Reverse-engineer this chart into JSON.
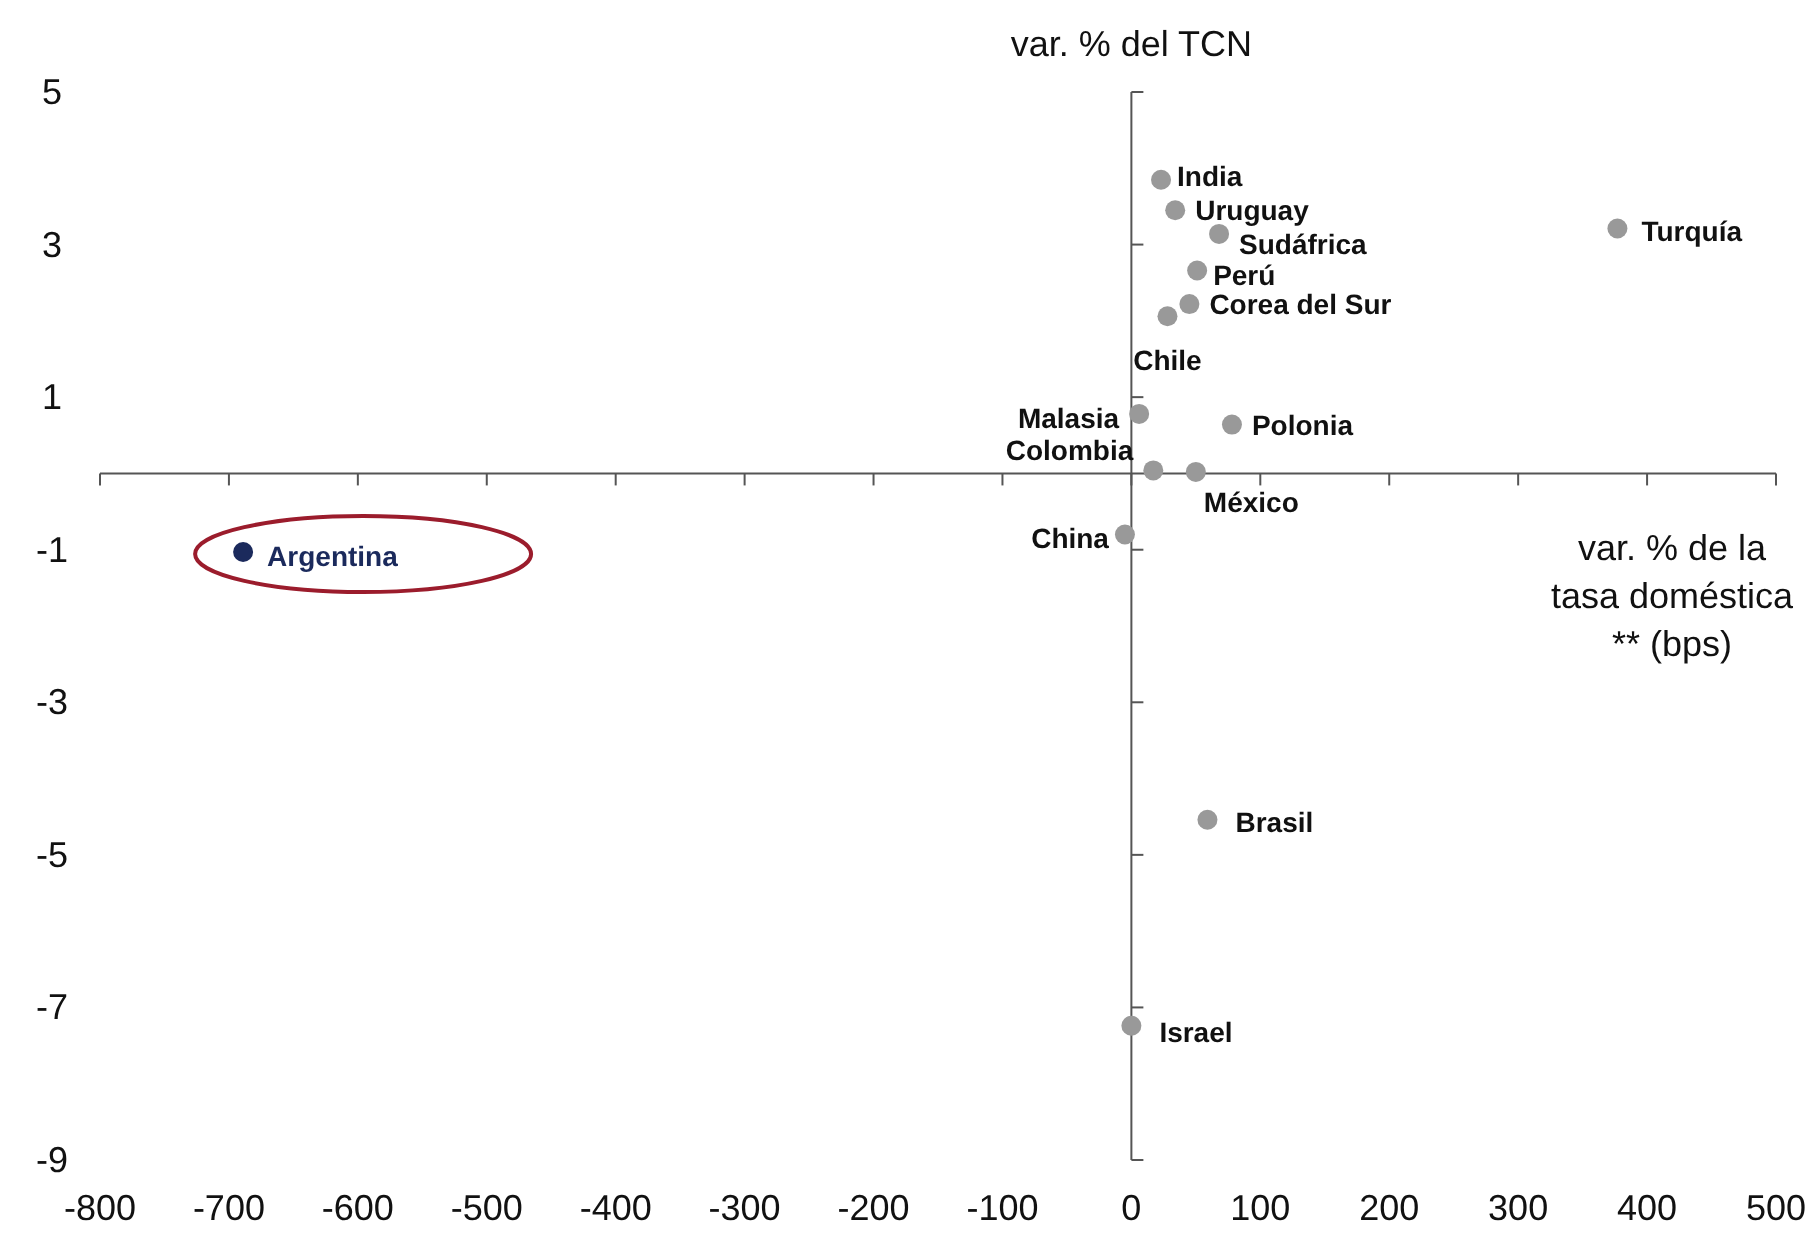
{
  "chart_data": {
    "type": "scatter",
    "xlabel": "var. % de la tasa doméstica ** (bps)",
    "ylabel": "var. % del TCN",
    "x": [
      23,
      34,
      68,
      51,
      45,
      28,
      6,
      78,
      17,
      50,
      -5,
      377,
      -689,
      59,
      0
    ],
    "values": [
      3.85,
      3.45,
      3.14,
      2.66,
      2.22,
      2.06,
      0.78,
      0.64,
      0.04,
      0.02,
      -0.8,
      3.21,
      -1.03,
      -4.54,
      -7.24
    ],
    "colors": [
      "#999999",
      "#999999",
      "#999999",
      "#999999",
      "#999999",
      "#999999",
      "#999999",
      "#999999",
      "#999999",
      "#999999",
      "#999999",
      "#999999",
      "#1b2a5c",
      "#999999",
      "#999999"
    ],
    "annotations": [
      {
        "text": "India",
        "x": 23,
        "y": 3.85
      },
      {
        "text": "Uruguay",
        "x": 34,
        "y": 3.45
      },
      {
        "text": "Sudáfrica",
        "x": 68,
        "y": 3.14
      },
      {
        "text": "Perú",
        "x": 51,
        "y": 2.66
      },
      {
        "text": "Corea del Sur",
        "x": 45,
        "y": 2.22
      },
      {
        "text": "Chile",
        "x": 28,
        "y": 2.06
      },
      {
        "text": "Malasia",
        "x": 6,
        "y": 0.78
      },
      {
        "text": "Polonia",
        "x": 78,
        "y": 0.64
      },
      {
        "text": "Colombia",
        "x": 17,
        "y": 0.04
      },
      {
        "text": "México",
        "x": 50,
        "y": 0.02
      },
      {
        "text": "China",
        "x": -5,
        "y": -0.8
      },
      {
        "text": "Turquía",
        "x": 377,
        "y": 3.21
      },
      {
        "text": "Argentina",
        "x": -689,
        "y": -1.03
      },
      {
        "text": "Brasil",
        "x": 59,
        "y": -4.54
      },
      {
        "text": "Israel",
        "x": 0,
        "y": -7.24
      }
    ],
    "xlim": [
      -800,
      500
    ],
    "xticks": [
      -800,
      -700,
      -600,
      -500,
      -400,
      -300,
      -200,
      -100,
      0,
      100,
      200,
      300,
      400,
      500
    ],
    "ylim": [
      -9,
      5
    ],
    "yticks": [
      -9,
      -7,
      -5,
      -3,
      -1,
      1,
      3,
      5
    ],
    "marker": "circle"
  }
}
